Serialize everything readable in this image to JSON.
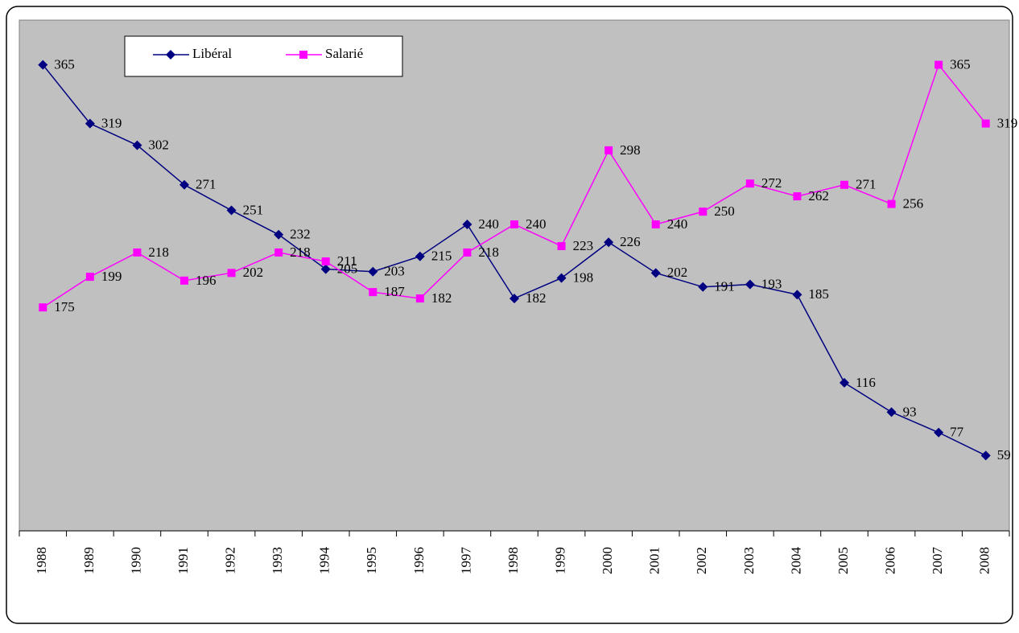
{
  "chart_data": {
    "type": "line",
    "categories": [
      "1988",
      "1989",
      "1990",
      "1991",
      "1992",
      "1993",
      "1994",
      "1995",
      "1996",
      "1997",
      "1998",
      "1999",
      "2000",
      "2001",
      "2002",
      "2003",
      "2004",
      "2005",
      "2006",
      "2007",
      "2008"
    ],
    "series": [
      {
        "name": "Libéral",
        "color": "#000080",
        "marker": "diamond",
        "values": [
          365,
          319,
          302,
          271,
          251,
          232,
          205,
          203,
          215,
          240,
          182,
          198,
          226,
          202,
          191,
          193,
          185,
          116,
          93,
          77,
          59
        ]
      },
      {
        "name": "Salarié",
        "color": "#ff00ff",
        "marker": "square",
        "values": [
          175,
          199,
          218,
          196,
          202,
          218,
          211,
          187,
          182,
          218,
          240,
          223,
          298,
          240,
          250,
          272,
          262,
          271,
          256,
          365,
          319
        ]
      }
    ],
    "ylim": [
      0,
      400
    ],
    "legend": "top-left",
    "data_labels": true
  }
}
